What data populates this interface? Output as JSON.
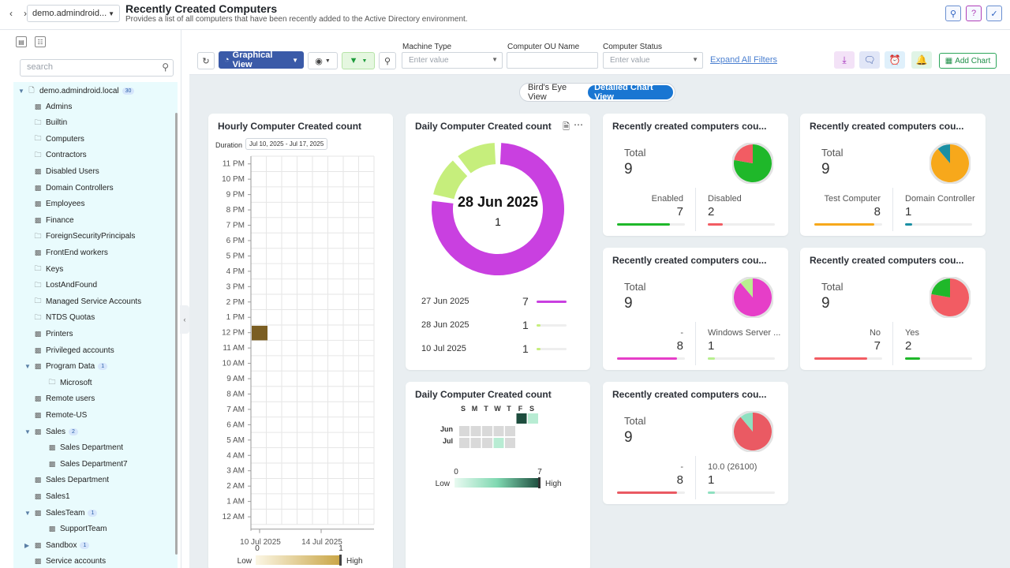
{
  "header": {
    "domain": "demo.admindroid...",
    "title": "Recently Created Computers",
    "subtitle": "Provides a list of all computers that have been recently added to the Active Directory environment."
  },
  "sidebar": {
    "search_placeholder": "search",
    "root": {
      "label": "demo.admindroid.local",
      "count": "30"
    },
    "items": [
      {
        "label": "Admins"
      },
      {
        "label": "Builtin"
      },
      {
        "label": "Computers"
      },
      {
        "label": "Contractors"
      },
      {
        "label": "Disabled Users"
      },
      {
        "label": "Domain Controllers"
      },
      {
        "label": "Employees"
      },
      {
        "label": "Finance"
      },
      {
        "label": "ForeignSecurityPrincipals"
      },
      {
        "label": "FrontEnd workers"
      },
      {
        "label": "Keys"
      },
      {
        "label": "LostAndFound"
      },
      {
        "label": "Managed Service Accounts"
      },
      {
        "label": "NTDS Quotas"
      },
      {
        "label": "Printers"
      },
      {
        "label": "Privileged accounts"
      },
      {
        "label": "Program Data",
        "count": "1"
      },
      {
        "label": "Microsoft"
      },
      {
        "label": "Remote users"
      },
      {
        "label": "Remote-US"
      },
      {
        "label": "Sales",
        "count": "2"
      },
      {
        "label": "Sales Department"
      },
      {
        "label": "Sales Department7"
      },
      {
        "label": "Sales Department"
      },
      {
        "label": "Sales1"
      },
      {
        "label": "SalesTeam",
        "count": "1"
      },
      {
        "label": "SupportTeam"
      },
      {
        "label": "Sandbox",
        "count": "1"
      },
      {
        "label": "Service accounts"
      }
    ]
  },
  "filterbar": {
    "view_button": "Graphical View",
    "filters": [
      {
        "label": "Machine Type",
        "placeholder": "Enter value"
      },
      {
        "label": "Computer OU Name",
        "placeholder": ""
      },
      {
        "label": "Computer Status",
        "placeholder": "Enter value"
      }
    ],
    "expand_link": "Expand All Filters",
    "add_chart": "Add Chart"
  },
  "view_toggle": {
    "birds_eye": "Bird's Eye View",
    "detailed": "Detailed Chart View"
  },
  "colors": {
    "accent": "#1976d2",
    "purple": "#c940e0",
    "lime": "#c6ee7c",
    "green": "#1fb82a"
  },
  "hourly_card": {
    "title": "Hourly Computer Created count",
    "duration_label": "Duration",
    "duration_value": "Jul 10, 2025 - Jul 17, 2025",
    "legend_min": "0",
    "legend_max": "1",
    "legend_low": "Low",
    "legend_high": "High"
  },
  "daily_donut_card": {
    "title": "Daily Computer Created count",
    "center_label": "28 Jun 2025",
    "center_value": "1",
    "legend": [
      {
        "date": "27 Jun 2025",
        "value": "7"
      },
      {
        "date": "28 Jun 2025",
        "value": "1"
      },
      {
        "date": "10 Jul 2025",
        "value": "1"
      }
    ]
  },
  "daily_calendar_card": {
    "title": "Daily Computer Created count",
    "days": [
      "S",
      "M",
      "T",
      "W",
      "T",
      "F",
      "S"
    ],
    "months": [
      "Jun",
      "Jul"
    ],
    "legend_min": "0",
    "legend_max": "7",
    "legend_low": "Low",
    "legend_high": "High"
  },
  "summary_cards": [
    {
      "title": "Recently created computers cou...",
      "total_label": "Total",
      "total": "9",
      "left_label": "Enabled",
      "left_value": "7",
      "right_label": "Disabled",
      "right_value": "2",
      "left_color": "#1fb82a",
      "right_color": "#f25c63"
    },
    {
      "title": "Recently created computers cou...",
      "total_label": "Total",
      "total": "9",
      "left_label": "Test Computer",
      "left_value": "8",
      "right_label": "Domain Controller",
      "right_value": "1",
      "left_color": "#f7a81b",
      "right_color": "#1a8fa3"
    },
    {
      "title": "Recently created computers cou...",
      "total_label": "Total",
      "total": "9",
      "left_label": "-",
      "left_value": "8",
      "right_label": "Windows Server ...",
      "right_value": "1",
      "left_color": "#e63ec8",
      "right_color": "#b8ef8f"
    },
    {
      "title": "Recently created computers cou...",
      "total_label": "Total",
      "total": "9",
      "left_label": "No",
      "left_value": "7",
      "right_label": "Yes",
      "right_value": "2",
      "left_color": "#f25c63",
      "right_color": "#1fb82a"
    },
    {
      "title": "Recently created computers cou...",
      "total_label": "Total",
      "total": "9",
      "left_label": "-",
      "left_value": "8",
      "right_label": "10.0 (26100)",
      "right_value": "1",
      "left_color": "#ea5a63",
      "right_color": "#8fe0c0"
    }
  ],
  "chart_data": [
    {
      "type": "heatmap",
      "title": "Hourly Computer Created count",
      "x": [
        "10 Jul 2025",
        "14 Jul 2025"
      ],
      "y": [
        "12 AM",
        "1 AM",
        "2 AM",
        "3 AM",
        "4 AM",
        "5 AM",
        "6 AM",
        "7 AM",
        "8 AM",
        "9 AM",
        "10 AM",
        "11 AM",
        "12 PM",
        "1 PM",
        "2 PM",
        "3 PM",
        "4 PM",
        "5 PM",
        "6 PM",
        "7 PM",
        "8 PM",
        "9 PM",
        "10 PM",
        "11 PM"
      ],
      "points": [
        {
          "x": "10 Jul 2025",
          "y": "12 PM",
          "value": 1
        }
      ],
      "range": [
        0,
        1
      ]
    },
    {
      "type": "pie",
      "title": "Daily Computer Created count",
      "categories": [
        "27 Jun 2025",
        "28 Jun 2025",
        "10 Jul 2025"
      ],
      "values": [
        7,
        1,
        1
      ]
    },
    {
      "type": "heatmap",
      "title": "Daily Computer Created count",
      "x": [
        "S",
        "M",
        "T",
        "W",
        "T",
        "F",
        "S"
      ],
      "y": [
        "Jun",
        "Jul"
      ],
      "points": [
        {
          "x": "F",
          "y": "Jun",
          "value": 7
        },
        {
          "x": "S",
          "y": "Jun",
          "value": 1
        },
        {
          "x": "T",
          "y": "Jul",
          "value": 1
        }
      ],
      "range": [
        0,
        7
      ]
    },
    {
      "type": "pie",
      "title": "Recently created computers cou...",
      "categories": [
        "Enabled",
        "Disabled"
      ],
      "values": [
        7,
        2
      ]
    },
    {
      "type": "pie",
      "title": "Recently created computers cou...",
      "categories": [
        "Test Computer",
        "Domain Controller"
      ],
      "values": [
        8,
        1
      ]
    },
    {
      "type": "pie",
      "title": "Recently created computers cou...",
      "categories": [
        "-",
        "Windows Server ..."
      ],
      "values": [
        8,
        1
      ]
    },
    {
      "type": "pie",
      "title": "Recently created computers cou...",
      "categories": [
        "No",
        "Yes"
      ],
      "values": [
        7,
        2
      ]
    },
    {
      "type": "pie",
      "title": "Recently created computers cou...",
      "categories": [
        "-",
        "10.0 (26100)"
      ],
      "values": [
        8,
        1
      ]
    }
  ]
}
